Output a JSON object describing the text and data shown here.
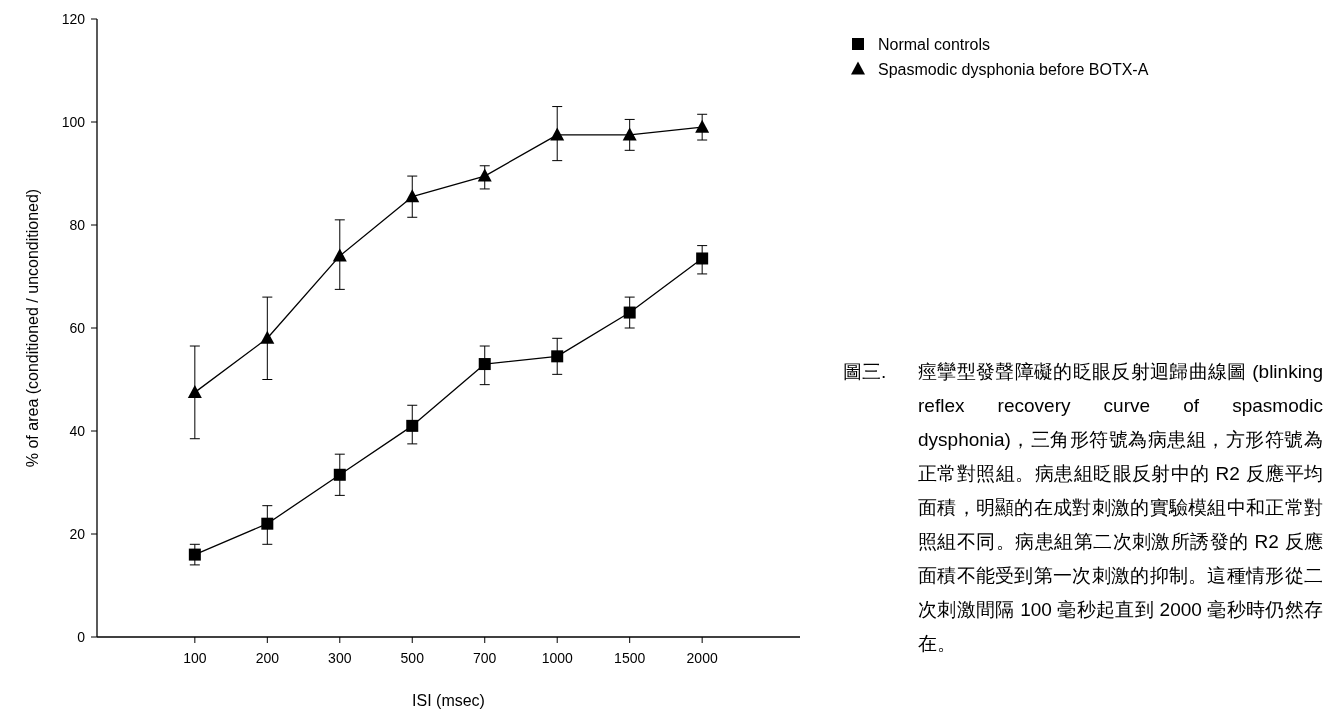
{
  "chart_data": {
    "type": "line",
    "xlabel": "ISI (msec)",
    "ylabel": "% of area (conditioned / unconditioned)",
    "categories": [
      "100",
      "200",
      "300",
      "500",
      "700",
      "1000",
      "1500",
      "2000"
    ],
    "ylim": [
      0,
      120
    ],
    "yticks": [
      0,
      20,
      40,
      60,
      80,
      100,
      120
    ],
    "grid": false,
    "legend": "top right",
    "line_style": "solid",
    "series": [
      {
        "name": "Normal controls",
        "color": "#000000",
        "marker": "square",
        "values": [
          16,
          22,
          31.5,
          41,
          53,
          54.5,
          63,
          73.5
        ],
        "errors": [
          [
            14,
            18
          ],
          [
            18,
            25.5
          ],
          [
            27.5,
            35.5
          ],
          [
            37.5,
            45
          ],
          [
            49,
            56.5
          ],
          [
            51,
            58
          ],
          [
            60,
            66
          ],
          [
            70.5,
            76
          ]
        ]
      },
      {
        "name": "Spasmodic dysphonia before BOTX-A",
        "color": "#000000",
        "marker": "triangle",
        "values": [
          47.5,
          58,
          74,
          85.5,
          89.5,
          97.5,
          97.5,
          99
        ],
        "errors": [
          [
            38.5,
            56.5
          ],
          [
            50,
            66
          ],
          [
            67.5,
            81
          ],
          [
            81.5,
            89.5
          ],
          [
            87,
            91.5
          ],
          [
            92.5,
            103
          ],
          [
            94.5,
            100.5
          ],
          [
            96.5,
            101.5
          ]
        ]
      }
    ],
    "annotations": [
      "圖三.",
      "痙攣型發聲障礙的眨眼反射迴歸曲線圖 (blinking reflex recovery curve of spasmodic dysphonia)，三角形符號為病患組，方形符號為正常對照組。病患組眨眼反射中的 R2 反應平均面積，明顯的在成對刺激的實驗模組中和正常對照組不同。病患組第二次刺激所誘發的 R2 反應面積不能受到第一次刺激的抑制。這種情形從二次刺激間隔 100 毫秒起直到 2000 毫秒時仍然存在。"
    ]
  }
}
